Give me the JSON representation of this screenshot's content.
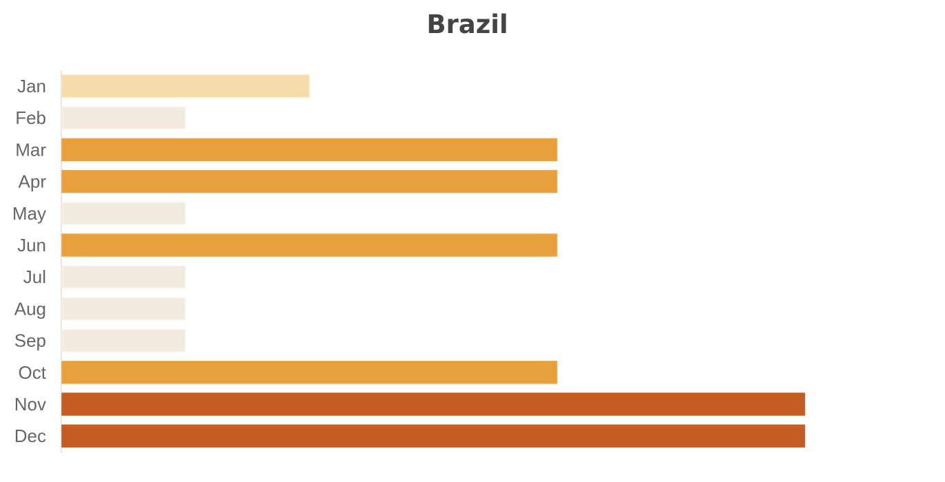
{
  "chart_data": {
    "type": "bar",
    "orientation": "horizontal",
    "title": "Brazil",
    "xlabel": "",
    "ylabel": "",
    "categories": [
      "Jan",
      "Feb",
      "Mar",
      "Apr",
      "May",
      "Jun",
      "Jul",
      "Aug",
      "Sep",
      "Oct",
      "Nov",
      "Dec"
    ],
    "values": [
      2,
      1,
      4,
      4,
      1,
      4,
      1,
      1,
      1,
      4,
      6,
      6
    ],
    "xlim": [
      0,
      7
    ],
    "grid": false,
    "legend": "none",
    "x_axis_visible": false,
    "color_scale": {
      "1": "#f2ebdf",
      "2": "#f4dba9",
      "4": "#e8a03c",
      "6": "#c45c24"
    }
  }
}
